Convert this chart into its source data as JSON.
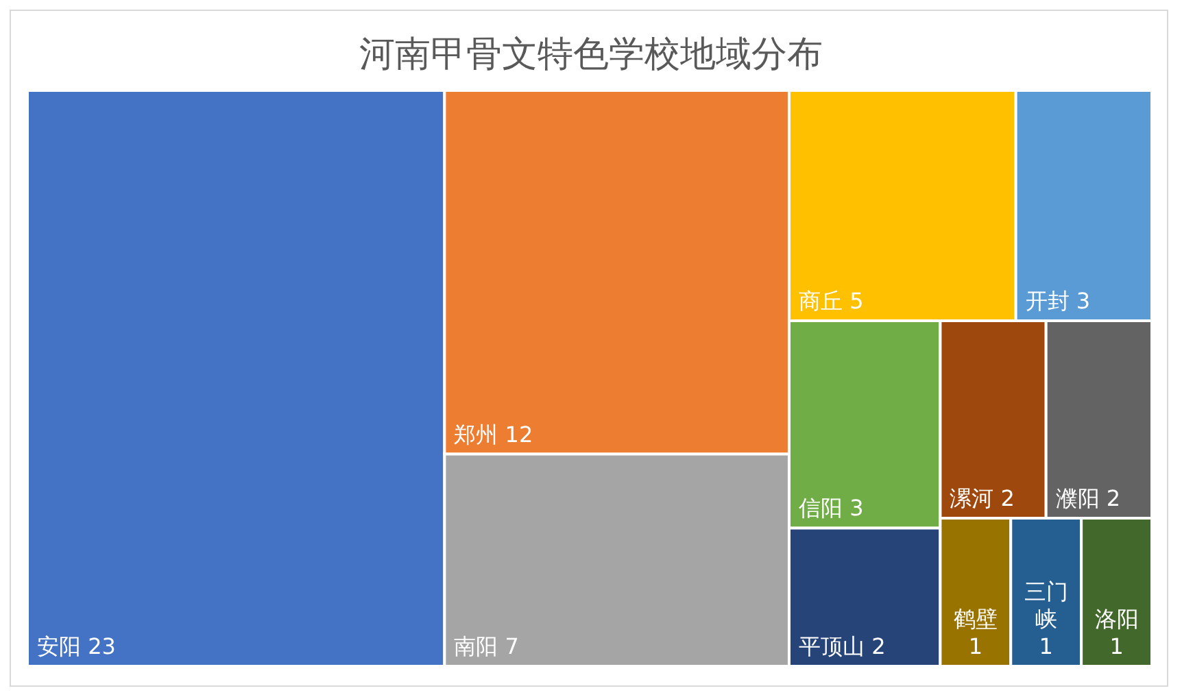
{
  "chart_data": {
    "type": "other",
    "title": "河南甲骨文特色学校地域分布",
    "categories": [
      "安阳",
      "郑州",
      "南阳",
      "商丘",
      "开封",
      "信阳",
      "平顶山",
      "漯河",
      "濮阳",
      "鹤壁",
      "三门峡",
      "洛阳"
    ],
    "values": [
      23,
      12,
      7,
      5,
      3,
      3,
      2,
      2,
      2,
      1,
      1,
      1
    ],
    "colors": [
      "#4472c4",
      "#ed7d31",
      "#a5a5a5",
      "#ffc000",
      "#5b9bd5",
      "#70ad47",
      "#264478",
      "#9e480e",
      "#636363",
      "#997300",
      "#255e91",
      "#43682b"
    ],
    "data_labels": true
  }
}
